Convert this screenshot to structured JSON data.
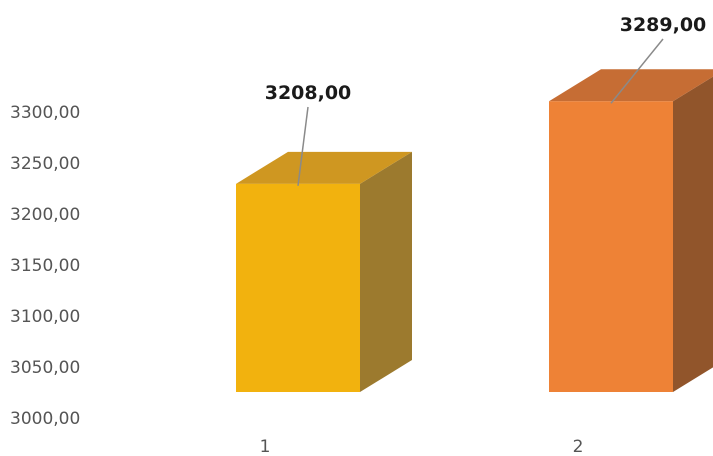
{
  "chart_data": {
    "type": "bar",
    "categories": [
      "1",
      "2"
    ],
    "values": [
      3208,
      3289
    ],
    "data_labels": [
      "3208,00",
      "3289,00"
    ],
    "yticks": [
      "3000,00",
      "3050,00",
      "3100,00",
      "3150,00",
      "3200,00",
      "3250,00",
      "3300,00"
    ],
    "ylim": [
      3000,
      3300
    ],
    "title": "",
    "xlabel": "",
    "ylabel": "",
    "grid": false,
    "three_d": true,
    "colors": {
      "bar1_front": "#f2b20e",
      "bar1_top": "#cf9721",
      "bar1_side": "#9c7a2e",
      "bar2_front": "#ee8236",
      "bar2_top": "#c66d34",
      "bar2_side": "#91552b",
      "leader": "#8a8a8a"
    }
  }
}
